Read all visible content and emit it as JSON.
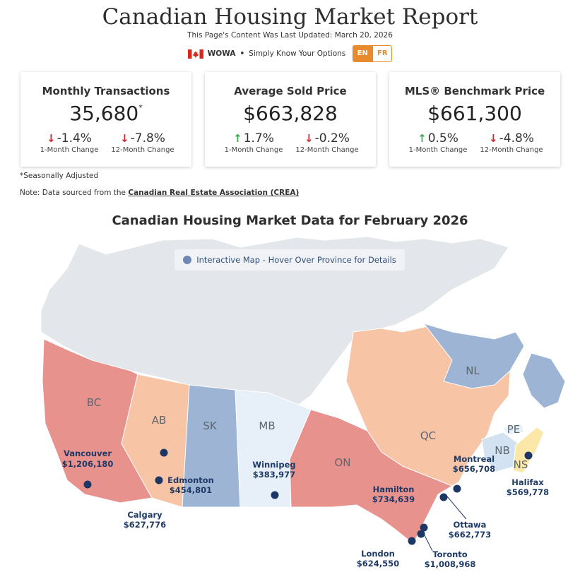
{
  "header": {
    "title": "Canadian Housing Market Report",
    "updated": "This Page's Content Was Last Updated: March 20, 2026",
    "brand": "WOWA",
    "bullet": "•",
    "tagline": "Simply Know Your Options",
    "lang_en": "EN",
    "lang_fr": "FR"
  },
  "cards": [
    {
      "title": "Monthly Transactions",
      "value": "35,680",
      "value_mark": "*",
      "change1": {
        "value": "-1.4%",
        "direction": "down",
        "label": "1-Month Change"
      },
      "change12": {
        "value": "-7.8%",
        "direction": "down",
        "label": "12-Month Change"
      }
    },
    {
      "title": "Average Sold Price",
      "value": "$663,828",
      "value_mark": "",
      "change1": {
        "value": "1.7%",
        "direction": "up",
        "label": "1-Month Change"
      },
      "change12": {
        "value": "-0.2%",
        "direction": "down",
        "label": "12-Month Change"
      }
    },
    {
      "title": "MLS® Benchmark Price",
      "value": "$661,300",
      "value_mark": "",
      "change1": {
        "value": "0.5%",
        "direction": "up",
        "label": "1-Month Change"
      },
      "change12": {
        "value": "-4.8%",
        "direction": "down",
        "label": "12-Month Change"
      }
    }
  ],
  "footnote": "*Seasonally Adjusted",
  "note": {
    "prefix": "Note: Data sourced from the",
    "link": "Canadian Real Estate Association (CREA)"
  },
  "map": {
    "heading": "Canadian Housing Market Data for February 2026",
    "legend": "Interactive Map - Hover Over Province for Details",
    "colors": {
      "territories": "#e3e6ea",
      "red": "#e8928e",
      "orange": "#f7c4a6",
      "blue": "#9db4d4",
      "lightblue": "#e7eff8",
      "nb": "#d3e2f1",
      "ns": "#fbe7a8",
      "pe": "#e8f0f8",
      "dot": "#1c3764"
    },
    "provinces": {
      "BC": "BC",
      "AB": "AB",
      "SK": "SK",
      "MB": "MB",
      "ON": "ON",
      "QC": "QC",
      "NL": "NL",
      "NB": "NB",
      "NS": "NS",
      "PE": "PE"
    },
    "cities": [
      {
        "name": "Vancouver",
        "price": "$1,206,180"
      },
      {
        "name": "Edmonton",
        "price": "$454,801"
      },
      {
        "name": "Calgary",
        "price": "$627,776"
      },
      {
        "name": "Winnipeg",
        "price": "$383,977"
      },
      {
        "name": "Hamilton",
        "price": "$734,639"
      },
      {
        "name": "Montreal",
        "price": "$656,708"
      },
      {
        "name": "Ottawa",
        "price": "$662,773"
      },
      {
        "name": "London",
        "price": "$624,550"
      },
      {
        "name": "Toronto",
        "price": "$1,008,968"
      },
      {
        "name": "Halifax",
        "price": "$569,778"
      }
    ]
  }
}
